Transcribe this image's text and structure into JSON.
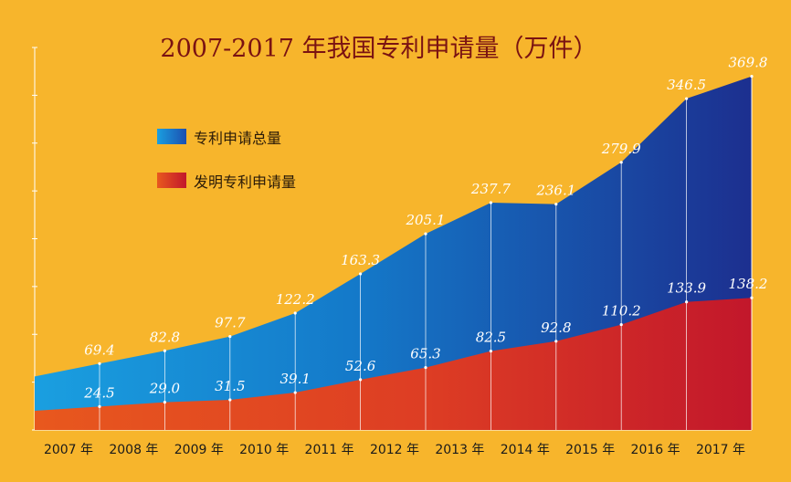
{
  "chart_data": {
    "type": "area",
    "title": "2007-2017 年我国专利申请量（万件）",
    "categories": [
      "2007 年",
      "2008 年",
      "2009 年",
      "2010 年",
      "2011 年",
      "2012 年",
      "2013 年",
      "2014 年",
      "2015 年",
      "2016 年",
      "2017 年"
    ],
    "series": [
      {
        "name": "专利申请总量",
        "values": [
          69.4,
          82.8,
          97.7,
          122.2,
          163.3,
          205.1,
          237.7,
          236.1,
          279.9,
          346.5,
          369.8
        ],
        "color_start": "#1a9fe0",
        "color_end": "#1c2f8f"
      },
      {
        "name": "发明专利申请量",
        "values": [
          24.5,
          29.0,
          31.5,
          39.1,
          52.6,
          65.3,
          82.5,
          92.8,
          110.2,
          133.9,
          138.2
        ],
        "color_start": "#e8581e",
        "color_end": "#c2172b"
      }
    ],
    "ylim": [
      0,
      400
    ],
    "xlabel": "",
    "ylabel": "",
    "legend_position": "top-left",
    "grid": "vertical",
    "background": "#f7b52c"
  }
}
